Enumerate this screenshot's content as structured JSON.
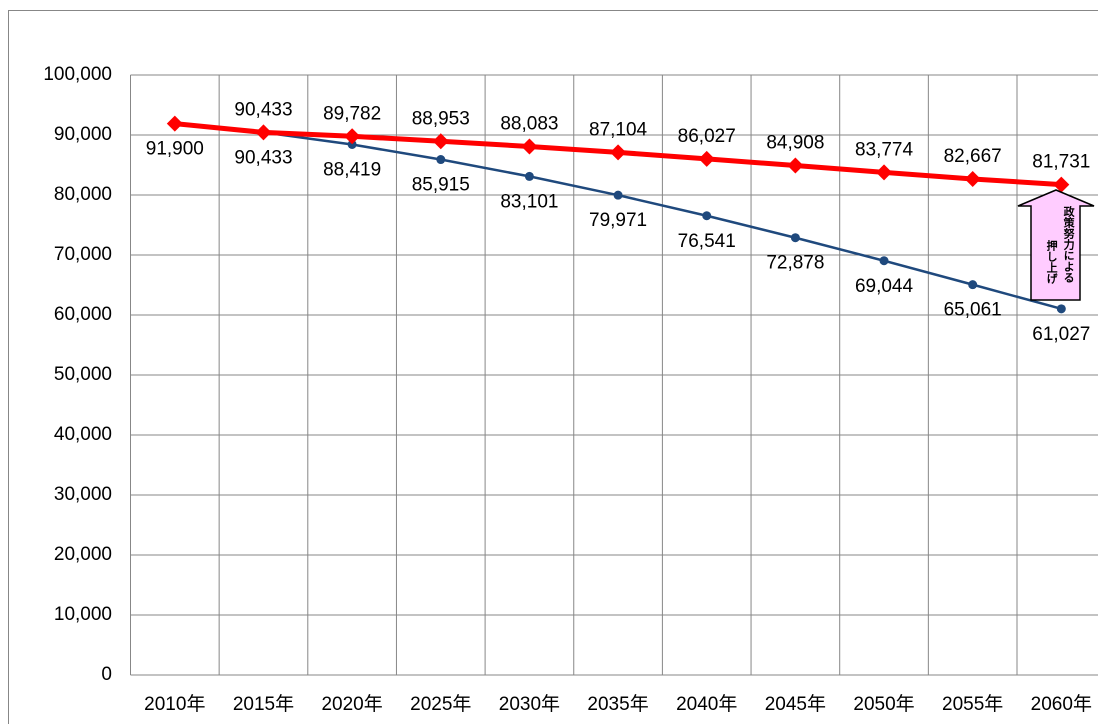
{
  "chart_data": {
    "type": "line",
    "categories": [
      "2010年",
      "2015年",
      "2020年",
      "2025年",
      "2030年",
      "2035年",
      "2040年",
      "2045年",
      "2050年",
      "2055年",
      "2060年"
    ],
    "series": [
      {
        "color": "#ff0000",
        "values": [
          91900,
          90433,
          89782,
          88953,
          88083,
          87104,
          86027,
          84908,
          83774,
          82667,
          81731
        ],
        "value_labels": [
          null,
          "90,433",
          "89,782",
          "88,953",
          "88,083",
          "87,104",
          "86,027",
          "84,908",
          "83,774",
          "82,667",
          "81,731"
        ]
      },
      {
        "color": "#1f497d",
        "values": [
          91900,
          90433,
          88419,
          85915,
          83101,
          79971,
          76541,
          72878,
          69044,
          65061,
          61027
        ],
        "value_labels": [
          "91,900",
          "90,433",
          "88,419",
          "85,915",
          "83,101",
          "79,971",
          "76,541",
          "72,878",
          "69,044",
          "65,061",
          "61,027"
        ]
      }
    ],
    "ylim": [
      0,
      100000
    ],
    "yticks": [
      0,
      {
        "value": 10000,
        "label": "10,000"
      },
      {
        "value": 20000,
        "label": "20,000"
      },
      {
        "value": 30000,
        "label": "30,000"
      },
      {
        "value": 40000,
        "label": "40,000"
      },
      {
        "value": 50000,
        "label": "50,000"
      },
      {
        "value": 60000,
        "label": "60,000"
      },
      {
        "value": 70000,
        "label": "70,000"
      },
      {
        "value": 80000,
        "label": "80,000"
      },
      {
        "value": 90000,
        "label": "90,000"
      },
      {
        "value": 100000,
        "label": "100,000"
      }
    ],
    "grid": true,
    "annotation": [
      "政策努力による",
      "押し上げ"
    ]
  }
}
